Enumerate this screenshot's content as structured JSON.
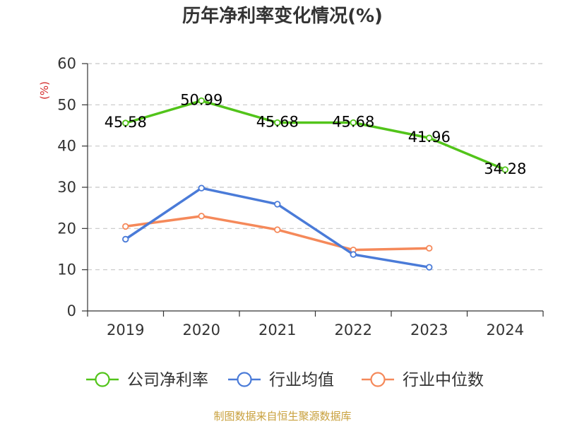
{
  "chart_data": {
    "type": "line",
    "title": "历年净利率变化情况(%)",
    "ylabel": "(%)",
    "xlabel": "",
    "categories": [
      "2019",
      "2020",
      "2021",
      "2022",
      "2023",
      "2024"
    ],
    "ylim": [
      0,
      60
    ],
    "yticks": [
      0,
      10,
      20,
      30,
      40,
      50,
      60
    ],
    "ytick_labels": [
      "0",
      "10",
      "20",
      "30",
      "40",
      "50",
      "60"
    ],
    "grid": true,
    "legend_position": "bottom",
    "series": [
      {
        "name": "公司净利率",
        "color": "#52c41a",
        "values": [
          45.58,
          50.99,
          45.68,
          45.68,
          41.96,
          34.28
        ],
        "labels": [
          "45.58",
          "50.99",
          "45.68",
          "45.68",
          "41.96",
          "34.28"
        ],
        "show_labels": true
      },
      {
        "name": "行业均值",
        "color": "#4a7bd8",
        "values": [
          17.4,
          29.8,
          25.9,
          13.7,
          10.6,
          null
        ],
        "show_labels": false
      },
      {
        "name": "行业中位数",
        "color": "#f5895a",
        "values": [
          20.5,
          23.0,
          19.7,
          14.8,
          15.2,
          null
        ],
        "show_labels": false
      }
    ]
  },
  "source": "制图数据来自恒生聚源数据库"
}
